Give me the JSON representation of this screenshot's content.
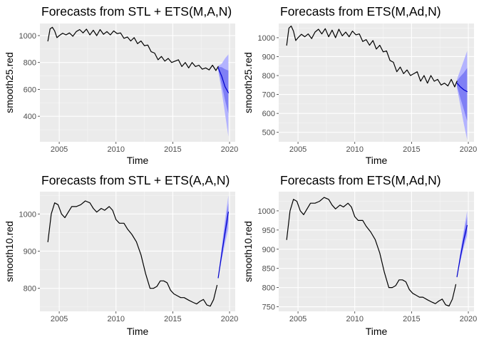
{
  "chart_data": [
    {
      "type": "line",
      "title": "Forecasts from STL +  ETS(M,A,N)",
      "xlabel": "Time",
      "ylabel": "smooth25.red",
      "xlim": [
        2003.3,
        2020.5
      ],
      "ylim": [
        210,
        1090
      ],
      "xticks": [
        2005,
        2010,
        2015,
        2020
      ],
      "yticks": [
        400,
        600,
        800,
        1000
      ],
      "grid": true,
      "series": [
        {
          "role": "observed",
          "color": "#000000",
          "x": [
            2004.0,
            2004.2,
            2004.4,
            2004.6,
            2004.8,
            2005.0,
            2005.3,
            2005.6,
            2005.9,
            2006.2,
            2006.5,
            2006.8,
            2007.1,
            2007.4,
            2007.7,
            2008.0,
            2008.3,
            2008.6,
            2008.9,
            2009.2,
            2009.5,
            2009.8,
            2010.1,
            2010.4,
            2010.7,
            2011.0,
            2011.3,
            2011.6,
            2011.9,
            2012.2,
            2012.5,
            2012.8,
            2013.1,
            2013.4,
            2013.7,
            2014.0,
            2014.3,
            2014.6,
            2014.9,
            2015.2,
            2015.5,
            2015.8,
            2016.1,
            2016.4,
            2016.7,
            2017.0,
            2017.3,
            2017.6,
            2017.9,
            2018.2,
            2018.5,
            2018.8,
            2019.0
          ],
          "y": [
            960,
            1050,
            1062,
            1035,
            985,
            1000,
            1018,
            1005,
            1020,
            995,
            1030,
            1045,
            1020,
            1048,
            1005,
            1040,
            1000,
            1045,
            1010,
            1030,
            1005,
            1035,
            1015,
            1020,
            980,
            990,
            960,
            985,
            940,
            960,
            925,
            930,
            880,
            870,
            820,
            845,
            810,
            830,
            800,
            810,
            820,
            770,
            800,
            760,
            800,
            770,
            780,
            750,
            760,
            745,
            780,
            740,
            770
          ],
          "label": ""
        },
        {
          "role": "forecast_mean",
          "color": "#0000cc",
          "x": [
            2019.0,
            2019.3,
            2019.6,
            2019.9
          ],
          "y": [
            760,
            700,
            620,
            575
          ],
          "label": ""
        }
      ],
      "intervals": [
        {
          "level": "95%",
          "color": "#b3b3ff",
          "x": [
            2019.0,
            2019.3,
            2019.6,
            2019.9
          ],
          "lower": [
            740,
            590,
            420,
            250
          ],
          "upper": [
            775,
            790,
            830,
            860
          ]
        },
        {
          "level": "80%",
          "color": "#7f7ff5",
          "x": [
            2019.0,
            2019.3,
            2019.6,
            2019.9
          ],
          "lower": [
            750,
            640,
            520,
            420
          ],
          "upper": [
            768,
            765,
            750,
            740
          ]
        }
      ]
    },
    {
      "type": "line",
      "title": "Forecasts from ETS(M,Ad,N)",
      "xlabel": "Time",
      "ylabel": "smooth25.red",
      "xlim": [
        2003.3,
        2020.5
      ],
      "ylim": [
        450,
        1075
      ],
      "xticks": [
        2005,
        2010,
        2015,
        2020
      ],
      "yticks": [
        500,
        600,
        700,
        800,
        900,
        1000
      ],
      "grid": true,
      "series": [
        {
          "role": "observed",
          "color": "#000000",
          "x": [
            2004.0,
            2004.2,
            2004.4,
            2004.6,
            2004.8,
            2005.0,
            2005.3,
            2005.6,
            2005.9,
            2006.2,
            2006.5,
            2006.8,
            2007.1,
            2007.4,
            2007.7,
            2008.0,
            2008.3,
            2008.6,
            2008.9,
            2009.2,
            2009.5,
            2009.8,
            2010.1,
            2010.4,
            2010.7,
            2011.0,
            2011.3,
            2011.6,
            2011.9,
            2012.2,
            2012.5,
            2012.8,
            2013.1,
            2013.4,
            2013.7,
            2014.0,
            2014.3,
            2014.6,
            2014.9,
            2015.2,
            2015.5,
            2015.8,
            2016.1,
            2016.4,
            2016.7,
            2017.0,
            2017.3,
            2017.6,
            2017.9,
            2018.2,
            2018.5,
            2018.8,
            2019.0
          ],
          "y": [
            960,
            1050,
            1062,
            1035,
            985,
            1000,
            1018,
            1005,
            1020,
            995,
            1030,
            1045,
            1020,
            1048,
            1005,
            1040,
            1000,
            1045,
            1010,
            1030,
            1005,
            1035,
            1015,
            1020,
            980,
            990,
            960,
            985,
            940,
            960,
            925,
            930,
            880,
            870,
            820,
            845,
            810,
            830,
            800,
            810,
            820,
            770,
            800,
            760,
            800,
            770,
            780,
            750,
            760,
            745,
            780,
            740,
            770
          ],
          "label": ""
        },
        {
          "role": "forecast_mean",
          "color": "#0000cc",
          "x": [
            2019.0,
            2019.3,
            2019.6,
            2019.9
          ],
          "y": [
            760,
            740,
            725,
            715
          ],
          "label": ""
        }
      ],
      "intervals": [
        {
          "level": "95%",
          "color": "#b3b3ff",
          "x": [
            2019.0,
            2019.3,
            2019.6,
            2019.9
          ],
          "lower": [
            735,
            640,
            545,
            460
          ],
          "upper": [
            780,
            830,
            880,
            930
          ]
        },
        {
          "level": "80%",
          "color": "#7f7ff5",
          "x": [
            2019.0,
            2019.3,
            2019.6,
            2019.9
          ],
          "lower": [
            745,
            680,
            620,
            560
          ],
          "upper": [
            772,
            795,
            815,
            840
          ]
        }
      ]
    },
    {
      "type": "line",
      "title": "Forecasts from STL +  ETS(A,A,N)",
      "xlabel": "Time",
      "ylabel": "smooth10.red",
      "xlim": [
        2003.3,
        2020.5
      ],
      "ylim": [
        738,
        1060
      ],
      "xticks": [
        2005,
        2010,
        2015,
        2020
      ],
      "yticks": [
        800,
        900,
        1000
      ],
      "grid": true,
      "series": [
        {
          "role": "observed",
          "color": "#000000",
          "x": [
            2004.0,
            2004.3,
            2004.6,
            2004.9,
            2005.2,
            2005.5,
            2005.8,
            2006.1,
            2006.5,
            2006.9,
            2007.3,
            2007.7,
            2008.0,
            2008.3,
            2008.7,
            2009.0,
            2009.4,
            2009.7,
            2010.0,
            2010.3,
            2010.7,
            2011.0,
            2011.4,
            2011.8,
            2012.2,
            2012.6,
            2013.0,
            2013.3,
            2013.6,
            2013.9,
            2014.2,
            2014.5,
            2014.8,
            2015.1,
            2015.4,
            2015.7,
            2016.0,
            2016.4,
            2016.8,
            2017.1,
            2017.4,
            2017.7,
            2018.0,
            2018.3,
            2018.6,
            2018.9
          ],
          "y": [
            925,
            1000,
            1030,
            1025,
            1000,
            990,
            1005,
            1020,
            1020,
            1025,
            1035,
            1030,
            1015,
            1005,
            1015,
            1010,
            1020,
            1010,
            985,
            975,
            975,
            960,
            945,
            925,
            890,
            840,
            800,
            800,
            805,
            820,
            820,
            815,
            795,
            785,
            780,
            775,
            775,
            768,
            762,
            758,
            765,
            770,
            755,
            752,
            770,
            808
          ],
          "label": ""
        },
        {
          "role": "forecast_mean",
          "color": "#0000cc",
          "x": [
            2019.0,
            2019.3,
            2019.6,
            2019.9
          ],
          "y": [
            828,
            890,
            950,
            1005
          ],
          "label": ""
        }
      ],
      "intervals": [
        {
          "level": "95%",
          "color": "#b3b3ff",
          "x": [
            2019.0,
            2019.3,
            2019.6,
            2019.9
          ],
          "lower": [
            828,
            875,
            920,
            960
          ],
          "upper": [
            828,
            910,
            985,
            1050
          ]
        },
        {
          "level": "80%",
          "color": "#7f7ff5",
          "x": [
            2019.0,
            2019.3,
            2019.6,
            2019.9
          ],
          "lower": [
            828,
            882,
            935,
            980
          ],
          "upper": [
            828,
            900,
            968,
            1030
          ]
        }
      ]
    },
    {
      "type": "line",
      "title": "Forecasts from ETS(M,Ad,N)",
      "xlabel": "Time",
      "ylabel": "smooth10.red",
      "xlim": [
        2003.3,
        2020.5
      ],
      "ylim": [
        738,
        1050
      ],
      "xticks": [
        2005,
        2010,
        2015,
        2020
      ],
      "yticks": [
        750,
        800,
        850,
        900,
        950,
        1000
      ],
      "grid": true,
      "series": [
        {
          "role": "observed",
          "color": "#000000",
          "x": [
            2004.0,
            2004.3,
            2004.6,
            2004.9,
            2005.2,
            2005.5,
            2005.8,
            2006.1,
            2006.5,
            2006.9,
            2007.3,
            2007.7,
            2008.0,
            2008.3,
            2008.7,
            2009.0,
            2009.4,
            2009.7,
            2010.0,
            2010.3,
            2010.7,
            2011.0,
            2011.4,
            2011.8,
            2012.2,
            2012.6,
            2013.0,
            2013.3,
            2013.6,
            2013.9,
            2014.2,
            2014.5,
            2014.8,
            2015.1,
            2015.4,
            2015.7,
            2016.0,
            2016.4,
            2016.8,
            2017.1,
            2017.4,
            2017.7,
            2018.0,
            2018.3,
            2018.6,
            2018.9
          ],
          "y": [
            925,
            1000,
            1030,
            1025,
            1000,
            990,
            1005,
            1020,
            1020,
            1025,
            1035,
            1030,
            1015,
            1005,
            1015,
            1010,
            1020,
            1010,
            985,
            975,
            975,
            960,
            945,
            925,
            890,
            840,
            800,
            800,
            805,
            820,
            820,
            815,
            795,
            785,
            780,
            775,
            775,
            768,
            762,
            758,
            765,
            770,
            755,
            752,
            770,
            808
          ],
          "label": ""
        },
        {
          "role": "forecast_mean",
          "color": "#0000cc",
          "x": [
            2019.0,
            2019.3,
            2019.6,
            2019.9
          ],
          "y": [
            828,
            880,
            925,
            962
          ],
          "label": ""
        }
      ],
      "intervals": [
        {
          "level": "95%",
          "color": "#b3b3ff",
          "x": [
            2019.0,
            2019.3,
            2019.6,
            2019.9
          ],
          "lower": [
            828,
            868,
            905,
            935
          ],
          "upper": [
            828,
            895,
            950,
            1000
          ]
        },
        {
          "level": "80%",
          "color": "#7f7ff5",
          "x": [
            2019.0,
            2019.3,
            2019.6,
            2019.9
          ],
          "lower": [
            828,
            873,
            913,
            946
          ],
          "upper": [
            828,
            888,
            940,
            985
          ]
        }
      ]
    }
  ]
}
